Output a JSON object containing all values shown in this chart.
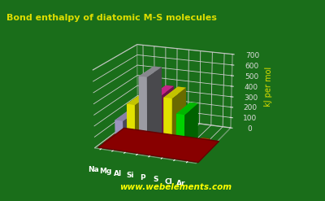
{
  "title": "Bond enthalpy of diatomic M-S molecules",
  "ylabel": "kJ per mol",
  "watermark": "www.webelements.com",
  "elements": [
    "Na",
    "Mg",
    "Al",
    "Si",
    "P",
    "S",
    "Cl",
    "Ar"
  ],
  "values": [
    5,
    230,
    390,
    650,
    490,
    490,
    360,
    50
  ],
  "bar_colors": [
    "#cc2020",
    "#b0a8d8",
    "#ffff00",
    "#b0b0b8",
    "#ff30b0",
    "#ffff00",
    "#00ee00",
    "#bb6600"
  ],
  "background_color": "#1a6e1a",
  "base_color": "#880000",
  "base_color2": "#660000",
  "title_color": "#dddd00",
  "watermark_color": "#ffff00",
  "axis_label_color": "#dddd00",
  "grid_color": "#cccccc",
  "tick_color": "#dddddd",
  "ylim": [
    0,
    700
  ],
  "yticks": [
    0,
    100,
    200,
    300,
    400,
    500,
    600,
    700
  ]
}
